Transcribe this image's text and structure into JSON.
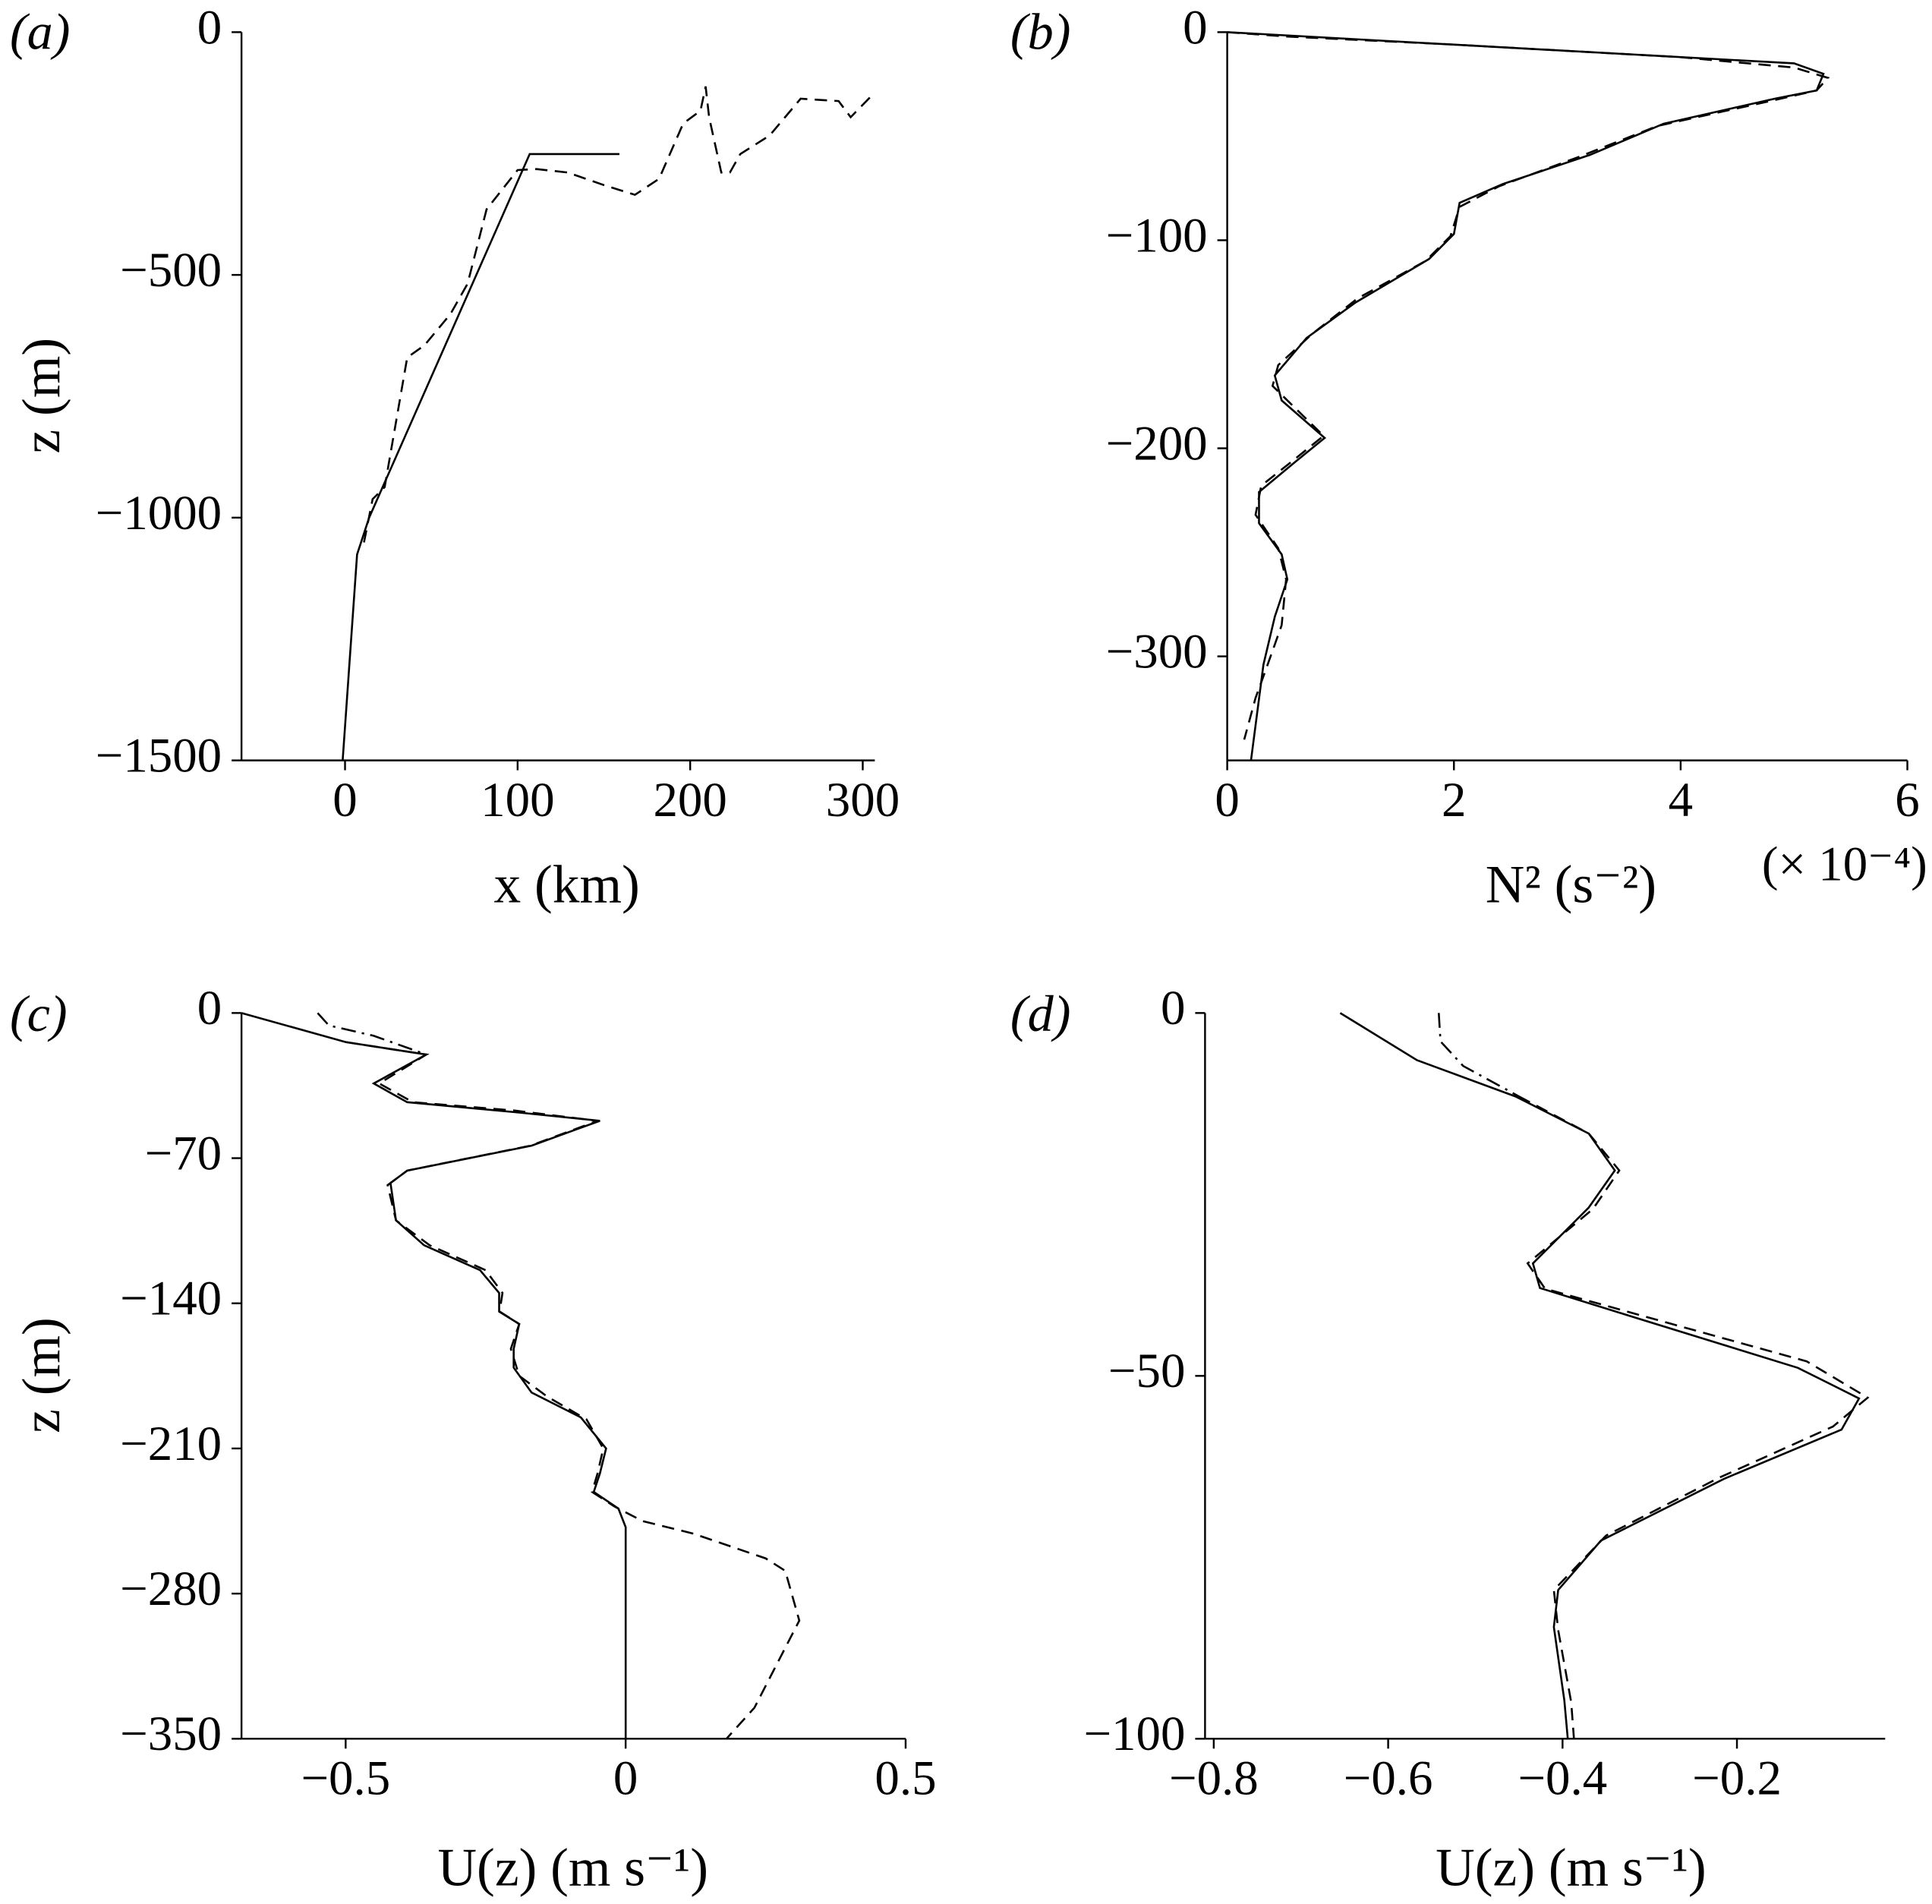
{
  "chart_data": [
    {
      "type": "line",
      "panel": "(a)",
      "xlabel": "x (km)",
      "ylabel": "z (m)",
      "xlim": [
        -60,
        307
      ],
      "ylim": [
        -1500,
        0
      ],
      "xticks": [
        0,
        100,
        200,
        300
      ],
      "yticks": [
        {
          "value": -1500,
          "label": "−1500"
        },
        {
          "value": -1000,
          "label": "−1000"
        },
        {
          "value": -500,
          "label": "−500"
        },
        0
      ],
      "series": [
        {
          "style": "solid",
          "color": "#000000",
          "x": [
            -1.4,
            7,
            14,
            107,
            159
          ],
          "y": [
            -1500,
            -1076,
            -1000,
            -251,
            -251
          ]
        },
        {
          "style": "dashed",
          "color": "#000000",
          "x": [
            11,
            16,
            23,
            36,
            46,
            61,
            71,
            82,
            100,
            111,
            129,
            150,
            168,
            182,
            196,
            206,
            209,
            211,
            218,
            223,
            229,
            246,
            264,
            286,
            293,
            307
          ],
          "y": [
            -1051,
            -962,
            -937,
            -670,
            -645,
            -581,
            -518,
            -365,
            -284,
            -282,
            -289,
            -315,
            -335,
            -302,
            -188,
            -162,
            -112,
            -175,
            -289,
            -289,
            -251,
            -213,
            -137,
            -142,
            -175,
            -124
          ]
        }
      ]
    },
    {
      "type": "line",
      "panel": "(b)",
      "xlabel": "N² (s⁻²)",
      "xnote": "(× 10⁻⁴)",
      "xlim": [
        0,
        6
      ],
      "ylim": [
        -350,
        0
      ],
      "xticks": [
        0,
        2,
        4,
        6
      ],
      "yticks": [
        {
          "value": -300,
          "label": "−300"
        },
        {
          "value": -200,
          "label": "−200"
        },
        {
          "value": -100,
          "label": "−100"
        },
        0
      ],
      "series": [
        {
          "style": "solid",
          "color": "#000000",
          "x": [
            0,
            5.0,
            5.26,
            5.2,
            4.83,
            3.85,
            3.2,
            2.43,
            2.05,
            2.0,
            1.78,
            1.13,
            0.7,
            0.42,
            0.48,
            0.86,
            0.59,
            0.28,
            0.28,
            0.48,
            0.53,
            0.42,
            0.32,
            0.21
          ],
          "y": [
            0,
            -15,
            -20,
            -28,
            -32,
            -44,
            -59,
            -73,
            -82,
            -97,
            -109,
            -130,
            -147,
            -165,
            -177,
            -195,
            -207,
            -221,
            -236,
            -251,
            -263,
            -281,
            -304,
            -350
          ]
        },
        {
          "style": "dashed",
          "color": "#000000",
          "x": [
            0,
            0.5,
            2,
            4,
            5,
            5.3,
            5.2,
            4.8,
            3.8,
            3.1,
            2.4,
            2.05,
            1.97,
            1.75,
            1.15,
            0.75,
            0.45,
            0.4,
            0.85,
            0.6,
            0.3,
            0.25,
            0.45,
            0.52,
            0.48,
            0.35,
            0.25,
            0.15
          ],
          "y": [
            0,
            -2,
            -6,
            -12,
            -17,
            -22,
            -28,
            -33,
            -45,
            -60,
            -74,
            -84,
            -98,
            -110,
            -128,
            -145,
            -160,
            -170,
            -194,
            -205,
            -218,
            -232,
            -248,
            -263,
            -285,
            -305,
            -320,
            -340
          ]
        }
      ]
    },
    {
      "type": "line",
      "panel": "(c)",
      "xlabel": "U(z) (m s⁻¹)",
      "ylabel": "z (m)",
      "xlim": [
        -0.686,
        0.5
      ],
      "ylim": [
        -350,
        0
      ],
      "xticks": [
        {
          "value": -0.5,
          "label": "−0.5"
        },
        0,
        0.5
      ],
      "yticks": [
        {
          "value": -350,
          "label": "−350"
        },
        {
          "value": -280,
          "label": "−280"
        },
        {
          "value": -210,
          "label": "−210"
        },
        {
          "value": -140,
          "label": "−140"
        },
        {
          "value": -70,
          "label": "−70"
        },
        0
      ],
      "series": [
        {
          "style": "solid",
          "color": "#000000",
          "x": [
            -0.686,
            -0.5,
            -0.356,
            -0.45,
            -0.39,
            -0.19,
            -0.046,
            -0.168,
            -0.39,
            -0.42,
            -0.41,
            -0.36,
            -0.26,
            -0.226,
            -0.226,
            -0.19,
            -0.2,
            -0.2,
            -0.168,
            -0.08,
            -0.035,
            -0.046,
            -0.057,
            -0.013,
            0,
            0
          ],
          "y": [
            0,
            -14,
            -20,
            -34,
            -43,
            -48,
            -52,
            -64,
            -76,
            -82,
            -100,
            -112,
            -124,
            -135,
            -144,
            -150,
            -162,
            -171,
            -183,
            -195,
            -210,
            -222,
            -231,
            -239,
            -248,
            -350
          ]
        },
        {
          "style": "dashed",
          "color": "#000000",
          "x": [
            -0.5,
            -0.356,
            -0.44,
            -0.38,
            -0.2,
            -0.05,
            -0.17,
            -0.39,
            -0.425,
            -0.41,
            -0.35,
            -0.25,
            -0.22,
            -0.225,
            -0.19,
            -0.205,
            -0.19,
            -0.14,
            -0.07,
            -0.04,
            -0.05,
            -0.06,
            -0.02,
            0.03,
            0.12,
            0.25,
            0.285,
            0.31,
            0.27,
            0.23,
            0.18
          ],
          "y": [
            -14,
            -20,
            -34,
            -43,
            -47,
            -52,
            -64,
            -76,
            -83,
            -100,
            -112,
            -124,
            -135,
            -144,
            -150,
            -162,
            -175,
            -185,
            -196,
            -210,
            -222,
            -231,
            -238,
            -245,
            -251,
            -263,
            -269,
            -293,
            -314,
            -335,
            -350
          ]
        },
        {
          "style": "dash-dot",
          "color": "#000000",
          "x": [
            -0.55,
            -0.53,
            -0.45,
            -0.356
          ],
          "y": [
            0,
            -6,
            -11,
            -20
          ]
        }
      ]
    },
    {
      "type": "line",
      "panel": "(d)",
      "xlabel": "U(z) (m s⁻¹)",
      "xlim": [
        -0.81,
        -0.03
      ],
      "ylim": [
        -100,
        0
      ],
      "xticks": [
        {
          "value": -0.8,
          "label": "−0.8"
        },
        {
          "value": -0.6,
          "label": "−0.6"
        },
        {
          "value": -0.4,
          "label": "−0.4"
        },
        {
          "value": -0.2,
          "label": "−0.2"
        }
      ],
      "yticks": [
        {
          "value": -100,
          "label": "−100"
        },
        {
          "value": -50,
          "label": "−50"
        },
        0
      ],
      "series": [
        {
          "style": "solid",
          "color": "#000000",
          "x": [
            -0.655,
            -0.567,
            -0.454,
            -0.37,
            -0.34,
            -0.37,
            -0.434,
            -0.426,
            -0.313,
            -0.13,
            -0.06,
            -0.08,
            -0.215,
            -0.356,
            -0.405,
            -0.41,
            -0.398,
            -0.394
          ],
          "y": [
            0,
            -6.5,
            -11.5,
            -16.6,
            -21.7,
            -26.8,
            -34.5,
            -37.9,
            -42.1,
            -48.9,
            -53.1,
            -57.4,
            -64.2,
            -72.7,
            -79.5,
            -84.6,
            -94.7,
            -100
          ]
        },
        {
          "style": "dashed",
          "color": "#000000",
          "x": [
            -0.45,
            -0.37,
            -0.335,
            -0.365,
            -0.44,
            -0.42,
            -0.3,
            -0.12,
            -0.05,
            -0.09,
            -0.22,
            -0.35,
            -0.41,
            -0.405,
            -0.39,
            -0.387
          ],
          "y": [
            -11.5,
            -16.6,
            -21.7,
            -27,
            -34.5,
            -38,
            -42,
            -48,
            -53,
            -57,
            -64,
            -72,
            -79.5,
            -85,
            -95,
            -100
          ]
        },
        {
          "style": "dash-dot",
          "color": "#000000",
          "x": [
            -0.542,
            -0.54,
            -0.514,
            -0.45
          ],
          "y": [
            0,
            -3.9,
            -7.3,
            -11.5
          ]
        }
      ]
    }
  ]
}
